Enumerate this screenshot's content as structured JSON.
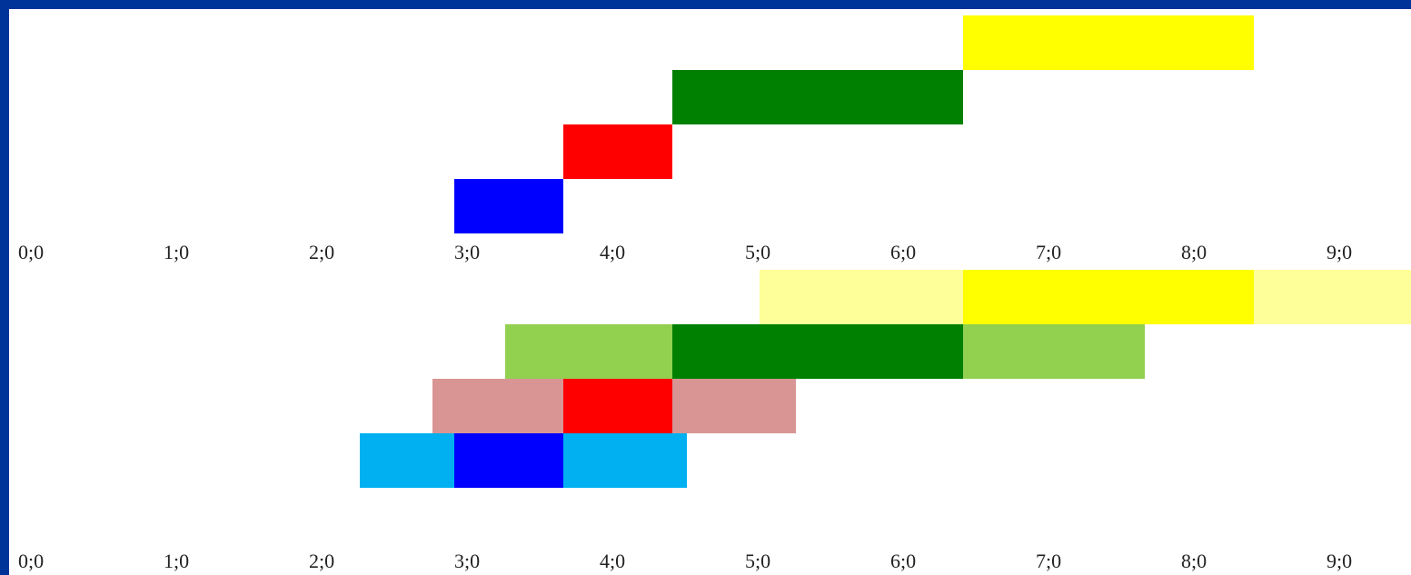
{
  "chart_data": [
    {
      "type": "bar",
      "orientation": "horizontal-ranges",
      "x_ticks": [
        "0;0",
        "1;0",
        "2;0",
        "3;0",
        "4;0",
        "5;0",
        "6;0",
        "7;0",
        "8;0",
        "9;0"
      ],
      "xlim": [
        0,
        10
      ],
      "grid": false,
      "series": [
        {
          "row": 1,
          "start": 3.0,
          "end": 3.75,
          "color": "#0000ff"
        },
        {
          "row": 2,
          "start": 3.75,
          "end": 4.5,
          "color": "#ff0000"
        },
        {
          "row": 3,
          "start": 4.5,
          "end": 6.5,
          "color": "#008000"
        },
        {
          "row": 4,
          "start": 6.5,
          "end": 8.5,
          "color": "#ffff00"
        }
      ]
    },
    {
      "type": "bar",
      "orientation": "horizontal-ranges",
      "x_ticks": [
        "0;0",
        "1;0",
        "2;0",
        "3;0",
        "4;0",
        "5;0",
        "6;0",
        "7;0",
        "8;0",
        "9;0"
      ],
      "xlim": [
        0,
        10
      ],
      "grid": false,
      "series": [
        {
          "row": 1,
          "start": 2.35,
          "end": 3.0,
          "color": "#00b0f0"
        },
        {
          "row": 1,
          "start": 3.0,
          "end": 3.75,
          "color": "#0000ff"
        },
        {
          "row": 1,
          "start": 3.75,
          "end": 4.6,
          "color": "#00b0f0"
        },
        {
          "row": 2,
          "start": 2.85,
          "end": 3.75,
          "color": "#d99594"
        },
        {
          "row": 2,
          "start": 3.75,
          "end": 4.5,
          "color": "#ff0000"
        },
        {
          "row": 2,
          "start": 4.5,
          "end": 5.35,
          "color": "#d99594"
        },
        {
          "row": 3,
          "start": 3.35,
          "end": 4.5,
          "color": "#92d050"
        },
        {
          "row": 3,
          "start": 4.5,
          "end": 6.5,
          "color": "#008000"
        },
        {
          "row": 3,
          "start": 6.5,
          "end": 7.75,
          "color": "#92d050"
        },
        {
          "row": 4,
          "start": 5.1,
          "end": 6.5,
          "color": "#ffff99"
        },
        {
          "row": 4,
          "start": 6.5,
          "end": 8.5,
          "color": "#ffff00"
        },
        {
          "row": 4,
          "start": 8.5,
          "end": 10.0,
          "color": "#ffff99"
        }
      ]
    }
  ]
}
